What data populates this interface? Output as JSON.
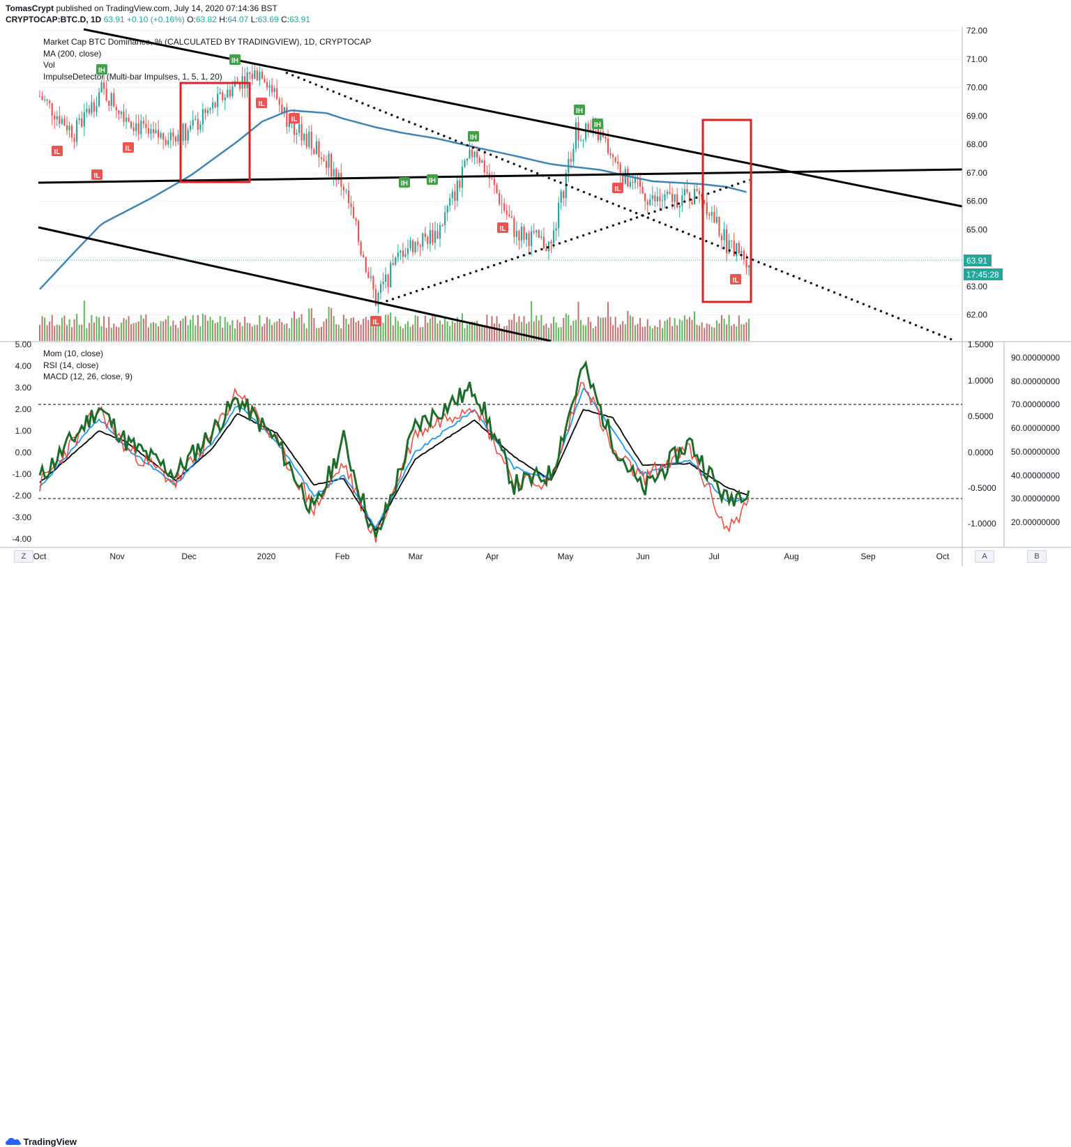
{
  "header": {
    "author": "TomasCrypt",
    "published_text": "published on TradingView.com, July 14, 2020 07:14:36 BST",
    "symbol": "CRYPTOCAP:BTC.D, 1D",
    "last": "63.91",
    "change": "+0.10 (+0.16%)",
    "open_label": "O:",
    "open": "63.82",
    "high_label": "H:",
    "high": "64.07",
    "low_label": "L:",
    "low": "63.69",
    "close_label": "C:",
    "close": "63.91"
  },
  "main_legend": [
    "Market Cap BTC Dominance, % (CALCULATED BY TRADINGVIEW), 1D, CRYPTOCAP",
    "MA (200, close)",
    "Vol",
    "ImpulseDetector (Multi-bar Impulses, 1, 5, 1, 20)"
  ],
  "osc_legend": [
    "Mom (10, close)",
    "RSI (14, close)",
    "MACD (12, 26, close, 9)"
  ],
  "price_axis": {
    "ticks": [
      "72.00",
      "71.00",
      "70.00",
      "69.00",
      "68.00",
      "67.00",
      "66.00",
      "65.00",
      "64.00",
      "63.00",
      "62.00"
    ],
    "last_label": "63.91",
    "countdown_label": "17:45:28"
  },
  "mom_axis": [
    "5.00",
    "4.00",
    "3.00",
    "2.00",
    "1.00",
    "0.00",
    "-1.00",
    "-2.00",
    "-3.00",
    "-4.00"
  ],
  "macd_axis": [
    "1.5000",
    "1.0000",
    "0.5000",
    "0.0000",
    "-0.5000",
    "-1.0000"
  ],
  "rsi_axis": [
    "90.00000000",
    "80.00000000",
    "70.00000000",
    "60.00000000",
    "50.00000000",
    "40.00000000",
    "30.00000000",
    "20.00000000"
  ],
  "time_axis": [
    "Oct",
    "Nov",
    "Dec",
    "2020",
    "Feb",
    "Mar",
    "Apr",
    "May",
    "Jun",
    "Jul",
    "Aug",
    "Sep",
    "Oct"
  ],
  "badges": [
    {
      "text": "IH",
      "type": "high"
    },
    {
      "text": "IH",
      "type": "high"
    },
    {
      "text": "IH",
      "type": "high"
    },
    {
      "text": "IH",
      "type": "high"
    },
    {
      "text": "IH",
      "type": "high"
    },
    {
      "text": "IH",
      "type": "high"
    },
    {
      "text": "IH",
      "type": "high"
    },
    {
      "text": "IL",
      "type": "low"
    },
    {
      "text": "IL",
      "type": "low"
    },
    {
      "text": "IL",
      "type": "low"
    },
    {
      "text": "IL",
      "type": "low"
    },
    {
      "text": "IL",
      "type": "low"
    },
    {
      "text": "IL",
      "type": "low"
    },
    {
      "text": "IL",
      "type": "low"
    },
    {
      "text": "IL",
      "type": "low"
    },
    {
      "text": "IL",
      "type": "low"
    }
  ],
  "buttons": {
    "zoom": "Z",
    "auto": "A",
    "log": "B"
  },
  "footer": {
    "brand": "TradingView"
  },
  "colors": {
    "up": "#26a69a",
    "down": "#ef5350",
    "ma": "#3d85b5",
    "vol_up": "#5eb859",
    "vol_down": "#c46f72",
    "mom": "#1f6b2a",
    "rsi": "#f44336",
    "macd": "#2196f3",
    "signal": "#000000",
    "box": "#e02020"
  },
  "chart_data": {
    "type": "line",
    "price": {
      "dates": [
        "2019-10-01",
        "2019-10-15",
        "2019-10-26",
        "2019-11-15",
        "2019-12-01",
        "2019-12-20",
        "2019-12-30",
        "2020-01-10",
        "2020-01-25",
        "2020-02-01",
        "2020-02-14",
        "2020-02-25",
        "2020-03-10",
        "2020-03-25",
        "2020-04-10",
        "2020-04-25",
        "2020-05-05",
        "2020-05-15",
        "2020-05-25",
        "2020-06-05",
        "2020-06-25",
        "2020-07-05",
        "2020-07-14"
      ],
      "close": [
        69.7,
        68.4,
        69.9,
        68.2,
        68.5,
        70.2,
        70.6,
        68.8,
        67.5,
        66.5,
        62.5,
        64.3,
        64.9,
        67.9,
        65.0,
        64.4,
        68.5,
        68.3,
        66.8,
        66.0,
        66.2,
        64.5,
        63.91
      ],
      "ma200": [
        62.9,
        64.2,
        65.2,
        66.1,
        66.9,
        68.1,
        68.8,
        69.2,
        69.1,
        68.9,
        68.6,
        68.4,
        68.2,
        67.9,
        67.6,
        67.3,
        67.2,
        67.1,
        66.9,
        66.7,
        66.6,
        66.5,
        66.3
      ],
      "ylim": [
        61.5,
        72.0
      ]
    },
    "oscillators": {
      "mom_ylim": [
        -4.5,
        5.0
      ],
      "dates": [
        "2019-10-01",
        "2019-10-25",
        "2019-11-05",
        "2019-11-25",
        "2019-12-10",
        "2019-12-20",
        "2020-01-05",
        "2020-01-20",
        "2020-02-01",
        "2020-02-14",
        "2020-03-01",
        "2020-03-25",
        "2020-04-10",
        "2020-04-25",
        "2020-05-08",
        "2020-05-20",
        "2020-06-01",
        "2020-06-20",
        "2020-07-05",
        "2020-07-14"
      ],
      "mom": [
        -1.2,
        2.1,
        0.5,
        -1.0,
        1.0,
        2.5,
        0.5,
        -2.8,
        0.6,
        -4.1,
        1.2,
        3.0,
        -1.5,
        -1.0,
        4.0,
        0.5,
        -1.8,
        0.5,
        -2.2,
        -1.6
      ],
      "rsi": [
        -1.5,
        2.0,
        0.2,
        -1.4,
        0.8,
        2.9,
        0.4,
        -2.6,
        -0.5,
        -4.0,
        0.9,
        2.3,
        -1.3,
        -1.4,
        3.5,
        0.0,
        -1.2,
        0.2,
        -3.6,
        -2.3
      ],
      "macd": [
        -1.6,
        1.6,
        0.2,
        -1.5,
        0.5,
        2.2,
        0.5,
        -2.0,
        -1.0,
        -3.5,
        0.0,
        2.0,
        -0.7,
        -1.2,
        3.0,
        1.0,
        -1.0,
        -0.3,
        -2.3,
        -2.1
      ],
      "signal": [
        -1.4,
        1.0,
        0.5,
        -1.3,
        0.2,
        1.8,
        0.9,
        -1.5,
        -1.2,
        -3.6,
        -0.3,
        1.5,
        -0.2,
        -1.3,
        2.0,
        1.6,
        -0.6,
        -0.5,
        -1.6,
        -2.0
      ],
      "rsi_levels": [
        70,
        30
      ]
    },
    "grid": true,
    "legend_position": "top-left"
  }
}
